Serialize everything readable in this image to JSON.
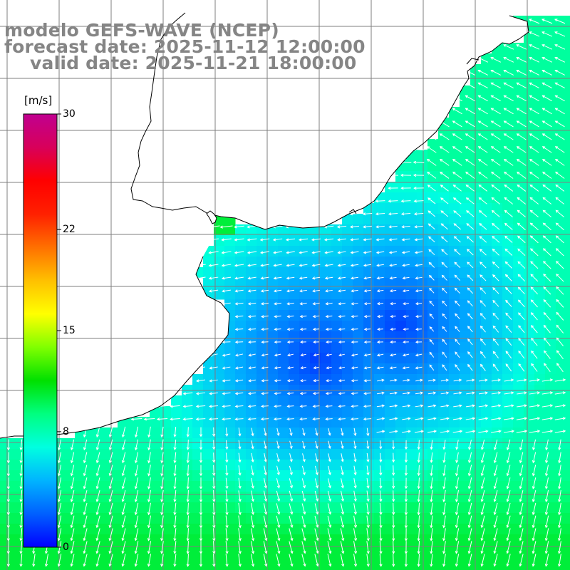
{
  "title": {
    "line1": "modelo GEFS-WAVE (NCEP)",
    "line2": "forecast date: 2025-11-12 12:00:00",
    "line3": "valid date: 2025-11-21 18:00:00"
  },
  "colorbar": {
    "unit": "[m/s]",
    "ticks": [
      {
        "value": 30,
        "label": "30"
      },
      {
        "value": 22,
        "label": "22"
      },
      {
        "value": 15,
        "label": "15"
      },
      {
        "value": 8,
        "label": "8"
      },
      {
        "value": 0,
        "label": "0"
      }
    ],
    "range": [
      0,
      30
    ],
    "stops": [
      "#0000ff",
      "#0060ff",
      "#00b4ff",
      "#00ffe0",
      "#00ff80",
      "#00e000",
      "#80ff00",
      "#ffff00",
      "#ffc000",
      "#ff7000",
      "#ff2000",
      "#ff0000",
      "#d8005a",
      "#c00090"
    ]
  },
  "map": {
    "land_color": "#ffffff",
    "coast_color": "#000000",
    "grid_color": "#7f7f7f",
    "arrow_color": "#ffffff",
    "grid": "on"
  }
}
